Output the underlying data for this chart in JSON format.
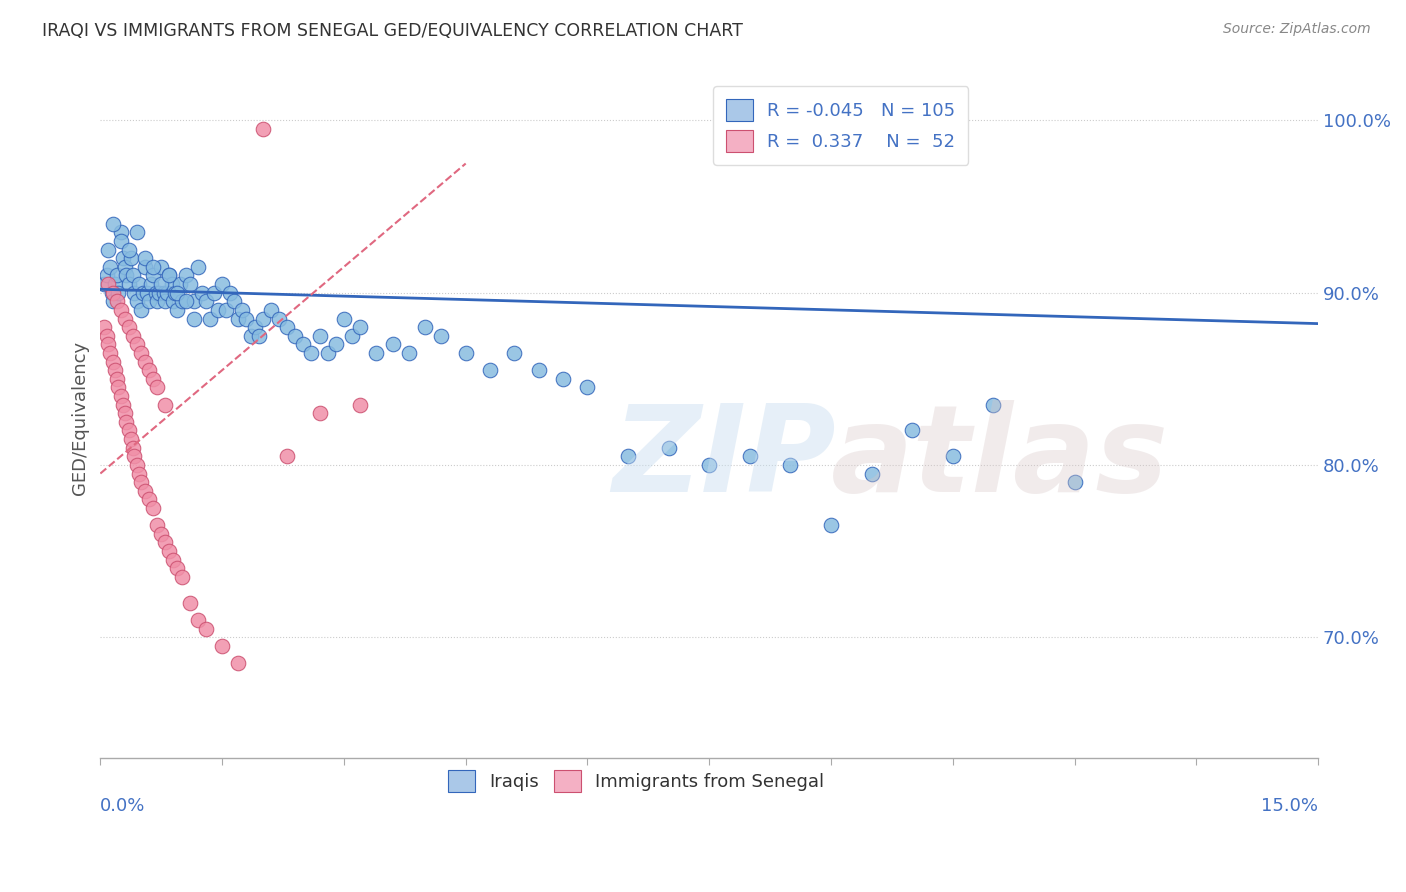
{
  "title": "IRAQI VS IMMIGRANTS FROM SENEGAL GED/EQUIVALENCY CORRELATION CHART",
  "source": "Source: ZipAtlas.com",
  "ylabel": "GED/Equivalency",
  "xlim": [
    0.0,
    15.0
  ],
  "ylim": [
    63.0,
    102.5
  ],
  "yticks": [
    70.0,
    80.0,
    90.0,
    100.0
  ],
  "ytick_labels": [
    "70.0%",
    "80.0%",
    "90.0%",
    "100.0%"
  ],
  "watermark_zip": "ZIP",
  "watermark_atlas": "atlas",
  "legend": {
    "R1": "-0.045",
    "N1": "105",
    "R2": "0.337",
    "N2": "52",
    "color1": "#aac8e8",
    "color2": "#f4b0c4"
  },
  "iraqis_color": "#88bce0",
  "senegal_color": "#f090a8",
  "trendline_iraqi_color": "#3366bb",
  "trendline_senegal_color": "#e06880",
  "background_color": "#ffffff",
  "grid_color": "#cccccc",
  "title_color": "#333333",
  "axis_label_color": "#4472c4",
  "iraqi_points_x": [
    0.05,
    0.08,
    0.1,
    0.12,
    0.14,
    0.16,
    0.18,
    0.2,
    0.22,
    0.25,
    0.28,
    0.3,
    0.32,
    0.35,
    0.38,
    0.4,
    0.42,
    0.45,
    0.48,
    0.5,
    0.52,
    0.55,
    0.58,
    0.6,
    0.62,
    0.65,
    0.68,
    0.7,
    0.72,
    0.75,
    0.78,
    0.8,
    0.82,
    0.85,
    0.88,
    0.9,
    0.92,
    0.95,
    0.98,
    1.0,
    1.05,
    1.1,
    1.15,
    1.2,
    1.25,
    1.3,
    1.35,
    1.4,
    1.45,
    1.5,
    1.55,
    1.6,
    1.65,
    1.7,
    1.75,
    1.8,
    1.85,
    1.9,
    1.95,
    2.0,
    2.1,
    2.2,
    2.3,
    2.4,
    2.5,
    2.6,
    2.7,
    2.8,
    2.9,
    3.0,
    3.1,
    3.2,
    3.4,
    3.6,
    3.8,
    4.0,
    4.2,
    4.5,
    4.8,
    5.1,
    5.4,
    5.7,
    6.0,
    6.5,
    7.0,
    7.5,
    8.0,
    8.5,
    9.0,
    9.5,
    10.0,
    10.5,
    11.0,
    12.0,
    0.15,
    0.25,
    0.35,
    0.45,
    0.55,
    0.65,
    0.75,
    0.85,
    0.95,
    1.05,
    1.15
  ],
  "iraqi_points_y": [
    90.5,
    91.0,
    92.5,
    91.5,
    90.0,
    89.5,
    90.5,
    91.0,
    90.0,
    93.5,
    92.0,
    91.5,
    91.0,
    90.5,
    92.0,
    91.0,
    90.0,
    89.5,
    90.5,
    89.0,
    90.0,
    91.5,
    90.0,
    89.5,
    90.5,
    91.0,
    90.0,
    89.5,
    90.0,
    91.5,
    90.0,
    89.5,
    90.0,
    91.0,
    90.5,
    89.5,
    90.0,
    89.0,
    90.5,
    89.5,
    91.0,
    90.5,
    89.5,
    91.5,
    90.0,
    89.5,
    88.5,
    90.0,
    89.0,
    90.5,
    89.0,
    90.0,
    89.5,
    88.5,
    89.0,
    88.5,
    87.5,
    88.0,
    87.5,
    88.5,
    89.0,
    88.5,
    88.0,
    87.5,
    87.0,
    86.5,
    87.5,
    86.5,
    87.0,
    88.5,
    87.5,
    88.0,
    86.5,
    87.0,
    86.5,
    88.0,
    87.5,
    86.5,
    85.5,
    86.5,
    85.5,
    85.0,
    84.5,
    80.5,
    81.0,
    80.0,
    80.5,
    80.0,
    76.5,
    79.5,
    82.0,
    80.5,
    83.5,
    79.0,
    94.0,
    93.0,
    92.5,
    93.5,
    92.0,
    91.5,
    90.5,
    91.0,
    90.0,
    89.5,
    88.5
  ],
  "senegal_points_x": [
    0.05,
    0.08,
    0.1,
    0.12,
    0.15,
    0.18,
    0.2,
    0.22,
    0.25,
    0.28,
    0.3,
    0.32,
    0.35,
    0.38,
    0.4,
    0.42,
    0.45,
    0.48,
    0.5,
    0.55,
    0.6,
    0.65,
    0.7,
    0.75,
    0.8,
    0.85,
    0.9,
    0.95,
    1.0,
    1.1,
    1.2,
    1.3,
    1.5,
    1.7,
    2.0,
    2.3,
    2.7,
    3.2,
    0.1,
    0.15,
    0.2,
    0.25,
    0.3,
    0.35,
    0.4,
    0.45,
    0.5,
    0.55,
    0.6,
    0.65,
    0.7,
    0.8
  ],
  "senegal_points_y": [
    88.0,
    87.5,
    87.0,
    86.5,
    86.0,
    85.5,
    85.0,
    84.5,
    84.0,
    83.5,
    83.0,
    82.5,
    82.0,
    81.5,
    81.0,
    80.5,
    80.0,
    79.5,
    79.0,
    78.5,
    78.0,
    77.5,
    76.5,
    76.0,
    75.5,
    75.0,
    74.5,
    74.0,
    73.5,
    72.0,
    71.0,
    70.5,
    69.5,
    68.5,
    99.5,
    80.5,
    83.0,
    83.5,
    90.5,
    90.0,
    89.5,
    89.0,
    88.5,
    88.0,
    87.5,
    87.0,
    86.5,
    86.0,
    85.5,
    85.0,
    84.5,
    83.5
  ]
}
